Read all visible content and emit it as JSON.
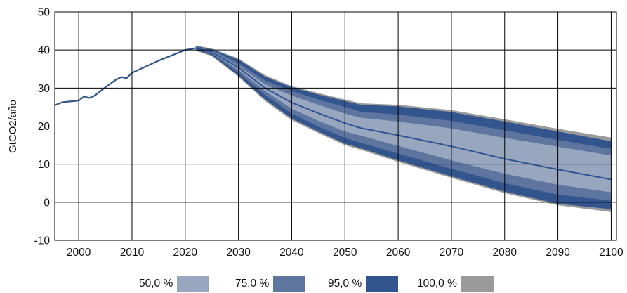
{
  "chart_data": {
    "type": "area",
    "ylabel": "GtCO2/año",
    "xlim": [
      1995.5,
      2101
    ],
    "ylim": [
      -10,
      50
    ],
    "x_ticks": [
      2000,
      2010,
      2020,
      2030,
      2040,
      2050,
      2060,
      2070,
      2080,
      2090,
      2100
    ],
    "y_ticks": [
      -10,
      0,
      10,
      20,
      30,
      40,
      50
    ],
    "grid": true,
    "legend_position": "bottom",
    "colors": {
      "historical_line": "#33558e",
      "median_line": "#2f5494",
      "band_100": "#9a9a9a",
      "band_95": "#33558e",
      "band_75": "#5e769f",
      "band_50": "#98a6bf",
      "grid": "#000000"
    },
    "legend": [
      {
        "label": "50,0 %",
        "color": "#98a6bf"
      },
      {
        "label": "75,0 %",
        "color": "#5e769f"
      },
      {
        "label": "95,0 %",
        "color": "#33558e"
      },
      {
        "label": "100,0 %",
        "color": "#9a9a9a"
      }
    ],
    "historical": {
      "x": [
        1995.5,
        1997,
        2000,
        2001,
        2002,
        2003,
        2005,
        2007,
        2008,
        2009,
        2010,
        2015,
        2020,
        2022
      ],
      "y": [
        25.5,
        26.3,
        26.7,
        27.8,
        27.4,
        28.0,
        30.2,
        32.2,
        32.9,
        32.6,
        34.0,
        37.2,
        40.0,
        40.5
      ]
    },
    "projection_x": [
      2022,
      2025,
      2030,
      2035,
      2040,
      2045,
      2050,
      2053,
      2060,
      2070,
      2080,
      2090,
      2100
    ],
    "bands": [
      {
        "name": "100,0 %",
        "upper": [
          41.2,
          40.4,
          37.8,
          33.4,
          30.5,
          28.7,
          27.0,
          26.0,
          25.6,
          24.2,
          21.8,
          19.3,
          17.0
        ],
        "lower": [
          39.8,
          38.4,
          33.0,
          26.6,
          21.6,
          18.2,
          15.0,
          13.8,
          10.6,
          6.4,
          2.4,
          -0.8,
          -2.6
        ]
      },
      {
        "name": "95,0 %",
        "upper": [
          41.0,
          40.2,
          37.5,
          33.0,
          30.2,
          28.3,
          26.6,
          25.6,
          25.2,
          23.7,
          21.2,
          18.6,
          16.0
        ],
        "lower": [
          40.0,
          38.6,
          33.3,
          27.0,
          22.0,
          18.6,
          15.4,
          14.2,
          11.0,
          6.8,
          2.8,
          -0.4,
          -1.8
        ]
      },
      {
        "name": "75,0 %",
        "upper": [
          40.8,
          40.0,
          36.6,
          32.0,
          29.2,
          27.0,
          25.0,
          23.8,
          23.0,
          21.4,
          18.9,
          16.4,
          14.0
        ],
        "lower": [
          40.2,
          39.0,
          34.0,
          28.2,
          23.3,
          19.9,
          16.9,
          15.6,
          12.8,
          8.8,
          5.0,
          2.0,
          0.4
        ]
      },
      {
        "name": "50,0 %",
        "upper": [
          40.6,
          39.8,
          35.8,
          31.0,
          28.0,
          25.6,
          23.3,
          22.2,
          21.2,
          19.4,
          16.9,
          14.6,
          12.3
        ],
        "lower": [
          40.4,
          39.3,
          34.8,
          29.2,
          24.6,
          21.4,
          18.6,
          17.5,
          14.8,
          11.0,
          7.5,
          4.6,
          2.6
        ]
      }
    ],
    "median": {
      "x": [
        2022,
        2025,
        2030,
        2035,
        2040,
        2045,
        2050,
        2053,
        2060,
        2070,
        2080,
        2090,
        2100
      ],
      "y": [
        40.5,
        39.5,
        35.4,
        30.0,
        26.2,
        23.4,
        20.8,
        19.5,
        17.6,
        14.7,
        11.4,
        8.6,
        6.0
      ]
    }
  }
}
